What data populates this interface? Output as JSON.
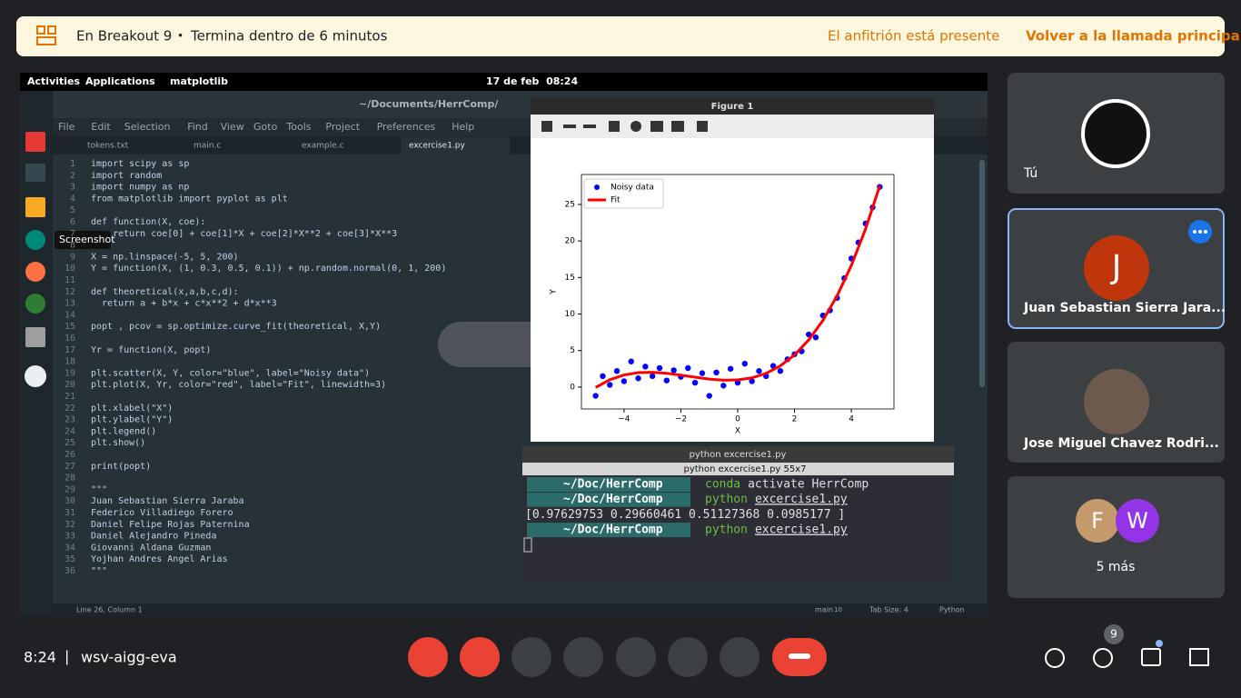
{
  "banner": {
    "breakout": "En Breakout 9",
    "dot": "•",
    "ends": "Termina dentro de 6 minutos",
    "host": "El anfitrión está presente",
    "back": "Volver a la llamada principal"
  },
  "desktop": {
    "activities": "Activities",
    "applications": "Applications",
    "app": "matplotlib",
    "clock": "17 de feb  08:24",
    "tooltip": "Screenshot"
  },
  "editor": {
    "title": "~/Documents/HerrComp/",
    "menu": [
      "File",
      "Edit",
      "Selection",
      "Find",
      "View",
      "Goto",
      "Tools",
      "Project",
      "Preferences",
      "Help"
    ],
    "tabs": [
      "tokens.txt",
      "main.c",
      "example.c",
      "excercise1.py"
    ],
    "lines": [
      {
        "n": 1,
        "code": "import scipy as sp"
      },
      {
        "n": 2,
        "code": "import random"
      },
      {
        "n": 3,
        "code": "import numpy as np"
      },
      {
        "n": 4,
        "code": "from matplotlib import pyplot as plt"
      },
      {
        "n": 5
      },
      {
        "n": 6,
        "code": "def function(X, coe):"
      },
      {
        "n": 7,
        "code": "    return coe[0] + coe[1]*X + coe[2]*X**2 + coe[3]*X**3"
      },
      {
        "n": 8
      },
      {
        "n": 9,
        "code": "X = np.linspace(-5, 5, 200)"
      },
      {
        "n": 10,
        "code": "Y = function(X, (1, 0.3, 0.5, 0.1)) + np.random.normal(0, 1, 200)"
      },
      {
        "n": 11
      },
      {
        "n": 12,
        "code": "def theoretical(x,a,b,c,d):"
      },
      {
        "n": 13,
        "code": "  return a + b*x + c*x**2 + d*x**3"
      },
      {
        "n": 14
      },
      {
        "n": 15,
        "code": "popt , pcov = sp.optimize.curve_fit(theoretical, X,Y)"
      },
      {
        "n": 16
      },
      {
        "n": 17,
        "code": "Yr = function(X, popt)"
      },
      {
        "n": 18
      },
      {
        "n": 19,
        "code": "plt.scatter(X, Y, color=\"blue\", label=\"Noisy data\")"
      },
      {
        "n": 20,
        "code": "plt.plot(X, Yr, color=\"red\", label=\"Fit\", linewidth=3)"
      },
      {
        "n": 21
      },
      {
        "n": 22,
        "code": "plt.xlabel(\"X\")"
      },
      {
        "n": 23,
        "code": "plt.ylabel(\"Y\")"
      },
      {
        "n": 24,
        "code": "plt.legend()"
      },
      {
        "n": 25,
        "code": "plt.show()"
      },
      {
        "n": 26
      },
      {
        "n": 27,
        "code": "print(popt)"
      },
      {
        "n": 28
      },
      {
        "n": 29,
        "code": "\"\"\""
      },
      {
        "n": 30,
        "code": "Juan Sebastian Sierra Jaraba"
      },
      {
        "n": 31,
        "code": "Federico Villadiego Forero"
      },
      {
        "n": 32,
        "code": "Daniel Felipe Rojas Paternina"
      },
      {
        "n": 33,
        "code": "Daniel Alejandro Pineda"
      },
      {
        "n": 34,
        "code": "Giovanni Aldana Guzman"
      },
      {
        "n": 35,
        "code": "Yojhan Andres Angel Arias"
      },
      {
        "n": 36,
        "code": "\"\"\""
      }
    ],
    "status": {
      "position": "Line 26, Column 1",
      "branch": "main",
      "changes": "10",
      "tab": "Tab Size: 4",
      "syntax": "Python"
    }
  },
  "figure": {
    "window": "Figure 1"
  },
  "chart_data": {
    "type": "scatter",
    "xlabel": "X",
    "ylabel": "Y",
    "legend": "upper-left",
    "xlim": [
      -5.5,
      5.5
    ],
    "ylim": [
      -3,
      29.1
    ],
    "xticks": [
      {
        "value": -4,
        "label": "−4"
      },
      {
        "value": -2,
        "label": "−2"
      },
      0,
      2,
      4
    ],
    "yticks": [
      0,
      5,
      10,
      15,
      20,
      25
    ],
    "series": [
      {
        "name": "Noisy data",
        "color": "#0000ff",
        "kind": "scatter",
        "x": [
          -5,
          -4.75,
          -4.5,
          -4.25,
          -4,
          -3.75,
          -3.5,
          -3.25,
          -3,
          -2.75,
          -2.5,
          -2.25,
          -2,
          -1.75,
          -1.5,
          -1.25,
          -1,
          -0.75,
          -0.5,
          -0.25,
          0,
          0.25,
          0.5,
          0.75,
          1,
          1.25,
          1.5,
          1.75,
          2,
          2.25,
          2.5,
          2.75,
          3,
          3.25,
          3.5,
          3.75,
          4,
          4.25,
          4.5,
          4.75,
          5
        ],
        "values": [
          -1.2,
          1.5,
          0.3,
          2.2,
          0.8,
          3.5,
          1.2,
          2.8,
          1.5,
          2.6,
          0.9,
          2.3,
          1.4,
          2.6,
          0.6,
          1.9,
          -1.2,
          2,
          0.2,
          2.5,
          0.6,
          3.2,
          0.8,
          2.2,
          1.5,
          2.9,
          2.2,
          3.8,
          4.5,
          4.9,
          7.2,
          6.8,
          9.8,
          10.5,
          12.2,
          14.9,
          17.6,
          19.8,
          22.4,
          24.6,
          27.4
        ]
      },
      {
        "name": "Fit",
        "color": "#ff0000",
        "kind": "line",
        "x": [
          -5,
          -4.5,
          -4,
          -3.5,
          -3,
          -2.5,
          -2,
          -1.5,
          -1,
          -0.5,
          0,
          0.5,
          1,
          1.5,
          2,
          2.5,
          3,
          3.5,
          4,
          4.5,
          5
        ],
        "values": [
          -0.05,
          1.01,
          1.66,
          1.97,
          2.02,
          1.89,
          1.64,
          1.35,
          1.09,
          0.94,
          0.98,
          1.26,
          1.88,
          2.9,
          4.4,
          6.45,
          9.13,
          12.5,
          16.64,
          21.64,
          27.55
        ]
      }
    ]
  },
  "terminal": {
    "window": "python excercise1.py",
    "tab": "python excercise1.py 55x7",
    "lines": [
      {
        "path": "~/Doc/HerrComp",
        "prog": "conda",
        "arg": "activate HerrComp"
      },
      {
        "path": "~/Doc/HerrComp",
        "prog": "python",
        "arg": "excercise1.py"
      },
      {
        "output": "[0.97629753 0.29660461 0.51127368 0.0985177 ]"
      },
      {
        "path": "~/Doc/HerrComp",
        "prog": "python",
        "arg": "excercise1.py"
      }
    ]
  },
  "participants": [
    {
      "name": "Tú"
    },
    {
      "name": "Juan Sebastian Sierra Jara...",
      "initial": "J"
    },
    {
      "name": "Jose Miguel Chavez Rodri..."
    },
    {
      "initials": [
        "F",
        "W"
      ],
      "name": "5 más"
    }
  ],
  "footer": {
    "time": "8:24",
    "sep": "|",
    "meeting": "wsv-aigg-eva",
    "people": "9"
  }
}
